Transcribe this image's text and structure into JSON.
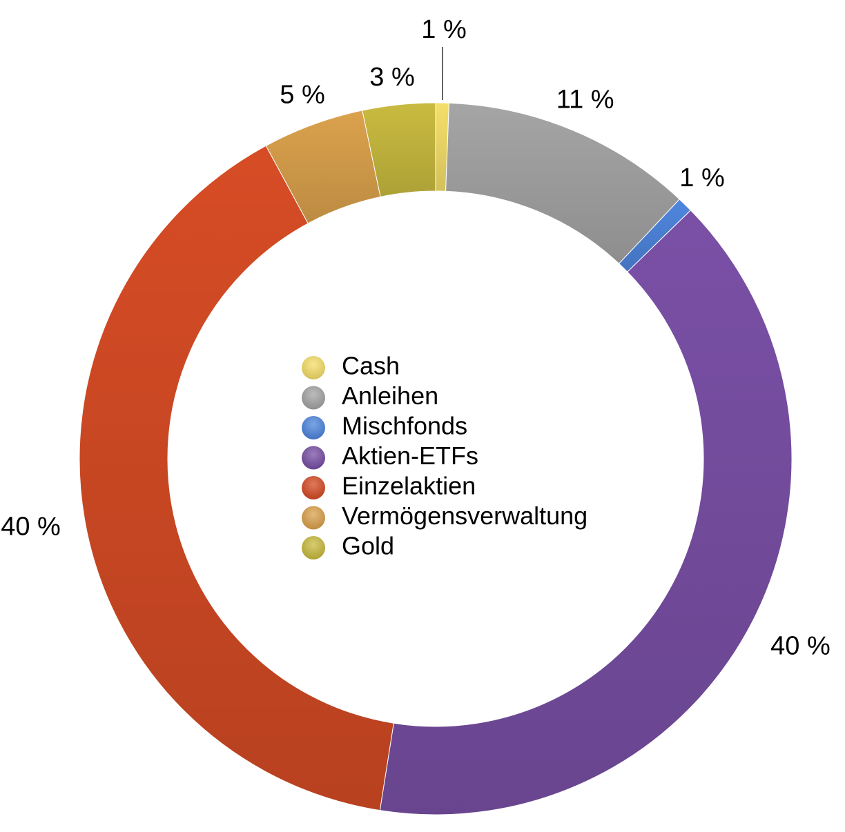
{
  "chart_data": {
    "type": "pie",
    "variant": "donut",
    "legend_position": "center",
    "slices": [
      {
        "name": "Cash",
        "value": 0.6,
        "label": "1 %",
        "color": "#f5df6a"
      },
      {
        "name": "Anleihen",
        "value": 11.4,
        "label": "11 %",
        "color": "#a5a5a5"
      },
      {
        "name": "Mischfonds",
        "value": 0.7,
        "label": "1 %",
        "color": "#4f86de"
      },
      {
        "name": "Aktien-ETFs",
        "value": 39.8,
        "label": "40 %",
        "color": "#7a50a6"
      },
      {
        "name": "Einzelaktien",
        "value": 39.6,
        "label": "40 %",
        "color": "#d64c25"
      },
      {
        "name": "Vermögensverwaltung",
        "value": 4.6,
        "label": "5 %",
        "color": "#dba24d"
      },
      {
        "name": "Gold",
        "value": 3.3,
        "label": "3 %",
        "color": "#c9bb40"
      }
    ]
  }
}
